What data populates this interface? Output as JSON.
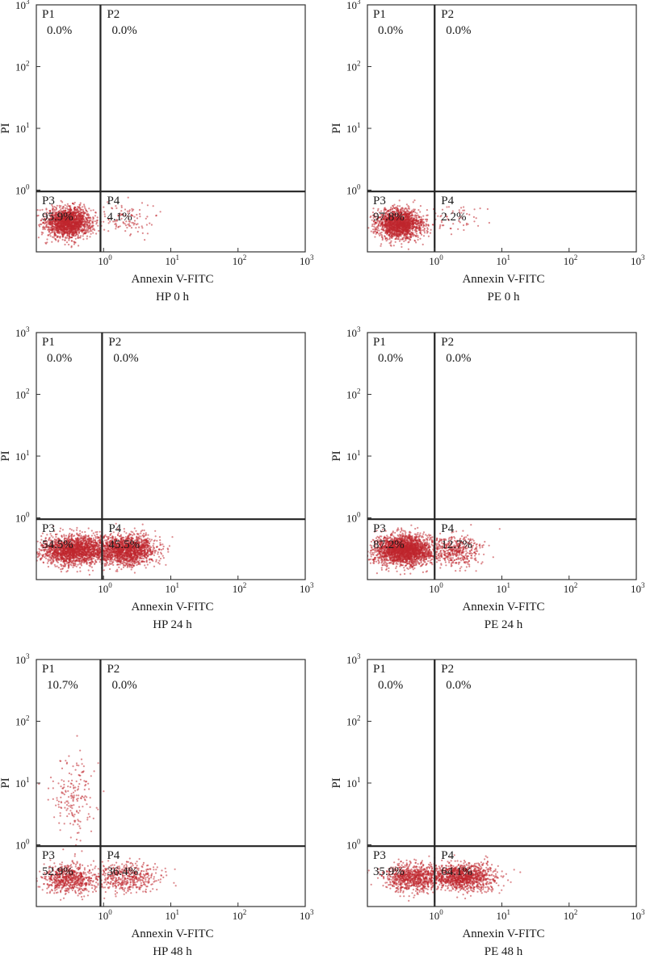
{
  "colors": {
    "dot": "#c0272d",
    "gate": "#222222",
    "frame": "#333333"
  },
  "chart_data": [
    {
      "type": "scatter",
      "title": "HP 0 h",
      "xlabel": "Annexin V-FITC",
      "ylabel": "PI",
      "xlim": [
        0.1,
        1000
      ],
      "ylim": [
        0.1,
        1000
      ],
      "x_scale": "log",
      "y_scale": "log",
      "x_ticks": [
        {
          "base": "10",
          "exp": "0"
        },
        {
          "base": "10",
          "exp": "1"
        },
        {
          "base": "10",
          "exp": "2"
        },
        {
          "base": "10",
          "exp": "3"
        }
      ],
      "y_ticks": [
        {
          "base": "10",
          "exp": "0"
        },
        {
          "base": "10",
          "exp": "1"
        },
        {
          "base": "10",
          "exp": "2"
        },
        {
          "base": "10",
          "exp": "3"
        }
      ],
      "gates": {
        "x": 0.9,
        "y": 0.95
      },
      "quadrants": [
        {
          "name": "P1",
          "percent": "0.0%"
        },
        {
          "name": "P2",
          "percent": "0.0%"
        },
        {
          "name": "P3",
          "percent": "95.9%"
        },
        {
          "name": "P4",
          "percent": "4.1%"
        }
      ],
      "clusters": [
        {
          "cx": 0.3,
          "cy": 0.3,
          "sx": 0.17,
          "sy": 0.12,
          "n": 1700
        },
        {
          "cx": 2.0,
          "cy": 0.35,
          "sx": 0.22,
          "sy": 0.13,
          "n": 110
        }
      ]
    },
    {
      "type": "scatter",
      "title": "PE 0 h",
      "xlabel": "Annexin V-FITC",
      "ylabel": "PI",
      "xlim": [
        0.1,
        1000
      ],
      "ylim": [
        0.1,
        1000
      ],
      "x_scale": "log",
      "y_scale": "log",
      "x_ticks": [
        {
          "base": "10",
          "exp": "0"
        },
        {
          "base": "10",
          "exp": "1"
        },
        {
          "base": "10",
          "exp": "2"
        },
        {
          "base": "10",
          "exp": "3"
        }
      ],
      "y_ticks": [
        {
          "base": "10",
          "exp": "0"
        },
        {
          "base": "10",
          "exp": "1"
        },
        {
          "base": "10",
          "exp": "2"
        },
        {
          "base": "10",
          "exp": "3"
        }
      ],
      "gates": {
        "x": 1.0,
        "y": 0.95
      },
      "quadrants": [
        {
          "name": "P1",
          "percent": "0.0%"
        },
        {
          "name": "P2",
          "percent": "0.0%"
        },
        {
          "name": "P3",
          "percent": "97.8%"
        },
        {
          "name": "P4",
          "percent": "2.2%"
        }
      ],
      "clusters": [
        {
          "cx": 0.3,
          "cy": 0.28,
          "sx": 0.17,
          "sy": 0.12,
          "n": 1700
        },
        {
          "cx": 2.0,
          "cy": 0.35,
          "sx": 0.22,
          "sy": 0.12,
          "n": 60
        }
      ]
    },
    {
      "type": "scatter",
      "title": "HP 24 h",
      "xlabel": "Annexin V-FITC",
      "ylabel": "PI",
      "xlim": [
        0.1,
        1000
      ],
      "ylim": [
        0.1,
        1000
      ],
      "x_scale": "log",
      "y_scale": "log",
      "x_ticks": [
        {
          "base": "10",
          "exp": "0"
        },
        {
          "base": "10",
          "exp": "1"
        },
        {
          "base": "10",
          "exp": "2"
        },
        {
          "base": "10",
          "exp": "3"
        }
      ],
      "y_ticks": [
        {
          "base": "10",
          "exp": "0"
        },
        {
          "base": "10",
          "exp": "1"
        },
        {
          "base": "10",
          "exp": "2"
        },
        {
          "base": "10",
          "exp": "3"
        }
      ],
      "gates": {
        "x": 0.95,
        "y": 0.95
      },
      "quadrants": [
        {
          "name": "P1",
          "percent": "0.0%"
        },
        {
          "name": "P2",
          "percent": "0.0%"
        },
        {
          "name": "P3",
          "percent": "54.5%"
        },
        {
          "name": "P4",
          "percent": "45.5%"
        }
      ],
      "clusters": [
        {
          "cx": 0.35,
          "cy": 0.3,
          "sx": 0.25,
          "sy": 0.12,
          "n": 1900
        },
        {
          "cx": 2.2,
          "cy": 0.3,
          "sx": 0.22,
          "sy": 0.12,
          "n": 1600
        }
      ]
    },
    {
      "type": "scatter",
      "title": "PE 24 h",
      "xlabel": "Annexin V-FITC",
      "ylabel": "PI",
      "xlim": [
        0.1,
        1000
      ],
      "ylim": [
        0.1,
        1000
      ],
      "x_scale": "log",
      "y_scale": "log",
      "x_ticks": [
        {
          "base": "10",
          "exp": "0"
        },
        {
          "base": "10",
          "exp": "1"
        },
        {
          "base": "10",
          "exp": "2"
        },
        {
          "base": "10",
          "exp": "3"
        }
      ],
      "y_ticks": [
        {
          "base": "10",
          "exp": "0"
        },
        {
          "base": "10",
          "exp": "1"
        },
        {
          "base": "10",
          "exp": "2"
        },
        {
          "base": "10",
          "exp": "3"
        }
      ],
      "gates": {
        "x": 1.0,
        "y": 0.95
      },
      "quadrants": [
        {
          "name": "P1",
          "percent": "0.0%"
        },
        {
          "name": "P2",
          "percent": "0.0%"
        },
        {
          "name": "P3",
          "percent": "87.2%"
        },
        {
          "name": "P4",
          "percent": "12.7%"
        }
      ],
      "clusters": [
        {
          "cx": 0.35,
          "cy": 0.3,
          "sx": 0.22,
          "sy": 0.12,
          "n": 2400
        },
        {
          "cx": 2.0,
          "cy": 0.3,
          "sx": 0.2,
          "sy": 0.12,
          "n": 420
        }
      ]
    },
    {
      "type": "scatter",
      "title": "HP 48 h",
      "xlabel": "Annexin V-FITC",
      "ylabel": "PI",
      "xlim": [
        0.1,
        1000
      ],
      "ylim": [
        0.1,
        1000
      ],
      "x_scale": "log",
      "y_scale": "log",
      "x_ticks": [
        {
          "base": "10",
          "exp": "0"
        },
        {
          "base": "10",
          "exp": "1"
        },
        {
          "base": "10",
          "exp": "2"
        },
        {
          "base": "10",
          "exp": "3"
        }
      ],
      "y_ticks": [
        {
          "base": "10",
          "exp": "0"
        },
        {
          "base": "10",
          "exp": "1"
        },
        {
          "base": "10",
          "exp": "2"
        },
        {
          "base": "10",
          "exp": "3"
        }
      ],
      "gates": {
        "x": 0.9,
        "y": 0.95
      },
      "quadrants": [
        {
          "name": "P1",
          "percent": "10.7%"
        },
        {
          "name": "P2",
          "percent": "0.0%"
        },
        {
          "name": "P3",
          "percent": "52.9%"
        },
        {
          "name": "P4",
          "percent": "36.4%"
        }
      ],
      "clusters": [
        {
          "cx": 0.3,
          "cy": 0.28,
          "sx": 0.2,
          "sy": 0.12,
          "n": 650
        },
        {
          "cx": 2.2,
          "cy": 0.3,
          "sx": 0.25,
          "sy": 0.12,
          "n": 480
        },
        {
          "cx": 0.35,
          "cy": 6.0,
          "sx": 0.15,
          "sy": 0.3,
          "n": 180
        }
      ]
    },
    {
      "type": "scatter",
      "title": "PE 48 h",
      "xlabel": "Annexin V-FITC",
      "ylabel": "PI",
      "xlim": [
        0.1,
        1000
      ],
      "ylim": [
        0.1,
        1000
      ],
      "x_scale": "log",
      "y_scale": "log",
      "x_ticks": [
        {
          "base": "10",
          "exp": "0"
        },
        {
          "base": "10",
          "exp": "1"
        },
        {
          "base": "10",
          "exp": "2"
        },
        {
          "base": "10",
          "exp": "3"
        }
      ],
      "y_ticks": [
        {
          "base": "10",
          "exp": "0"
        },
        {
          "base": "10",
          "exp": "1"
        },
        {
          "base": "10",
          "exp": "2"
        },
        {
          "base": "10",
          "exp": "3"
        }
      ],
      "gates": {
        "x": 1.0,
        "y": 0.95
      },
      "quadrants": [
        {
          "name": "P1",
          "percent": "0.0%"
        },
        {
          "name": "P2",
          "percent": "0.0%"
        },
        {
          "name": "P3",
          "percent": "35.9%"
        },
        {
          "name": "P4",
          "percent": "64.1%"
        }
      ],
      "clusters": [
        {
          "cx": 0.45,
          "cy": 0.3,
          "sx": 0.2,
          "sy": 0.11,
          "n": 800
        },
        {
          "cx": 2.6,
          "cy": 0.3,
          "sx": 0.25,
          "sy": 0.11,
          "n": 1200
        }
      ]
    }
  ]
}
